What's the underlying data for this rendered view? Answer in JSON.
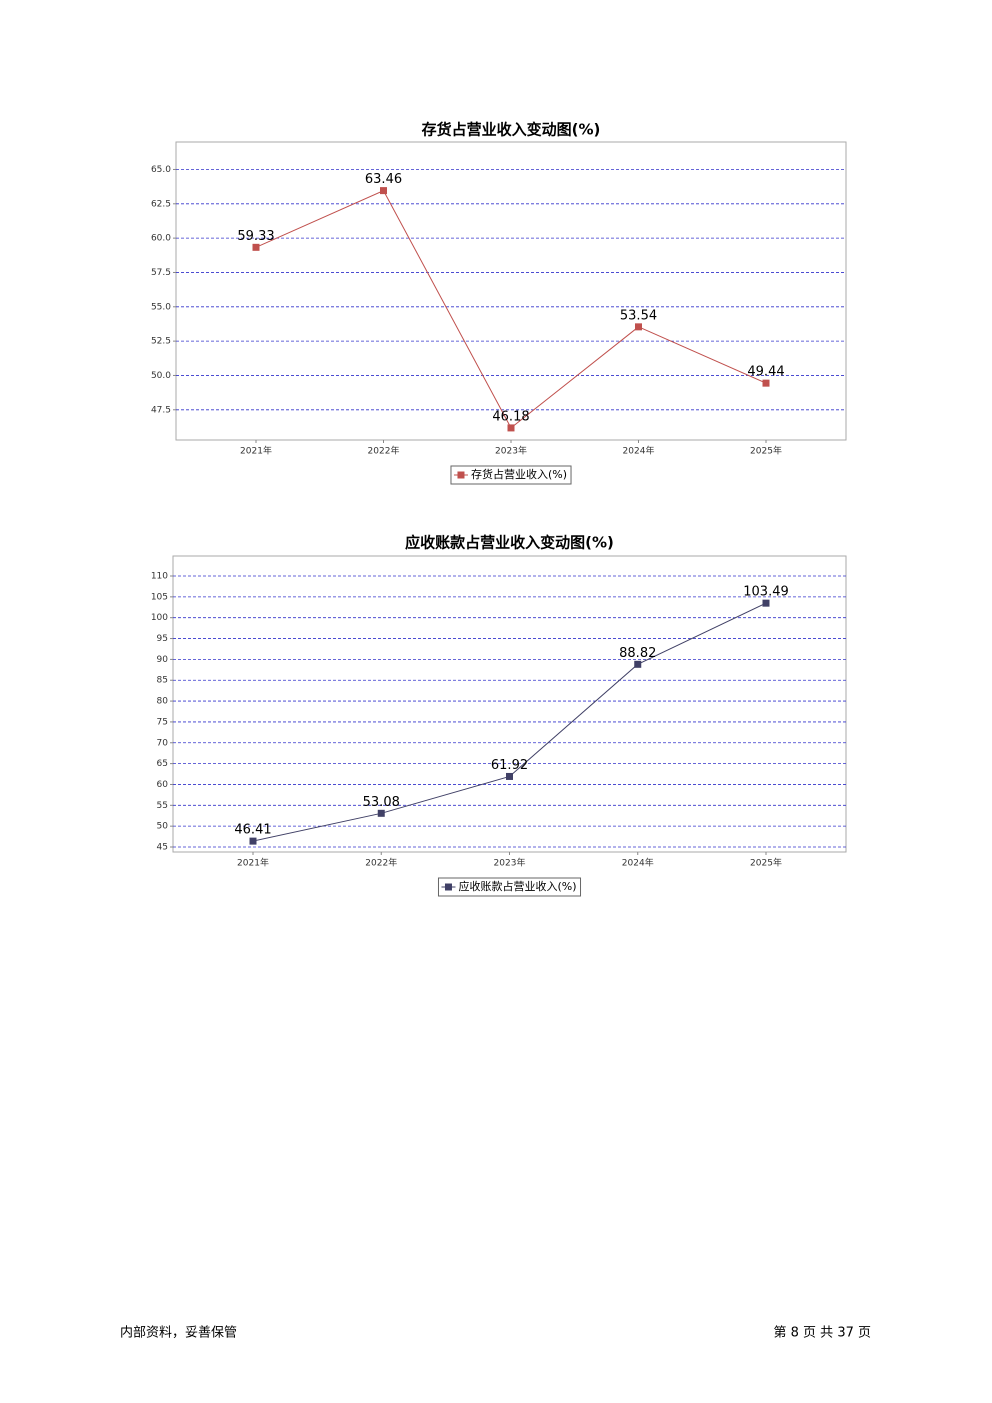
{
  "chart_data": [
    {
      "type": "line",
      "title": "存货占营业收入变动图(%)",
      "categories": [
        "2021年",
        "2022年",
        "2023年",
        "2024年",
        "2025年"
      ],
      "series": [
        {
          "name": "存货占营业收入(%)",
          "color": "#c0504d",
          "values": [
            59.33,
            63.46,
            46.18,
            53.54,
            49.44
          ]
        }
      ],
      "ylim": [
        45.3,
        67.0
      ],
      "yticks": [
        {
          "value": 47.5,
          "label": "47.5"
        },
        {
          "value": 50,
          "label": "50.0"
        },
        {
          "value": 52.5,
          "label": "52.5"
        },
        {
          "value": 55,
          "label": "55.0"
        },
        {
          "value": 57.5,
          "label": "57.5"
        },
        {
          "value": 60,
          "label": "60.0"
        },
        {
          "value": 62.5,
          "label": "62.5"
        },
        {
          "value": 65,
          "label": "65.0"
        }
      ],
      "grid": true,
      "legend": "bottom"
    },
    {
      "type": "line",
      "title": "应收账款占营业收入变动图(%)",
      "categories": [
        "2021年",
        "2022年",
        "2023年",
        "2024年",
        "2025年"
      ],
      "series": [
        {
          "name": "应收账款占营业收入(%)",
          "color": "#404066",
          "values": [
            46.41,
            53.08,
            61.92,
            88.82,
            103.49
          ]
        }
      ],
      "ylim": [
        43.8,
        114.8
      ],
      "yticks": [
        45,
        50,
        55,
        60,
        65,
        70,
        75,
        80,
        85,
        90,
        95,
        100,
        105,
        110
      ],
      "grid": true,
      "legend": "bottom"
    }
  ],
  "footer": {
    "left": "内部资料，妥善保管",
    "right": "第 8 页  共 37 页"
  }
}
